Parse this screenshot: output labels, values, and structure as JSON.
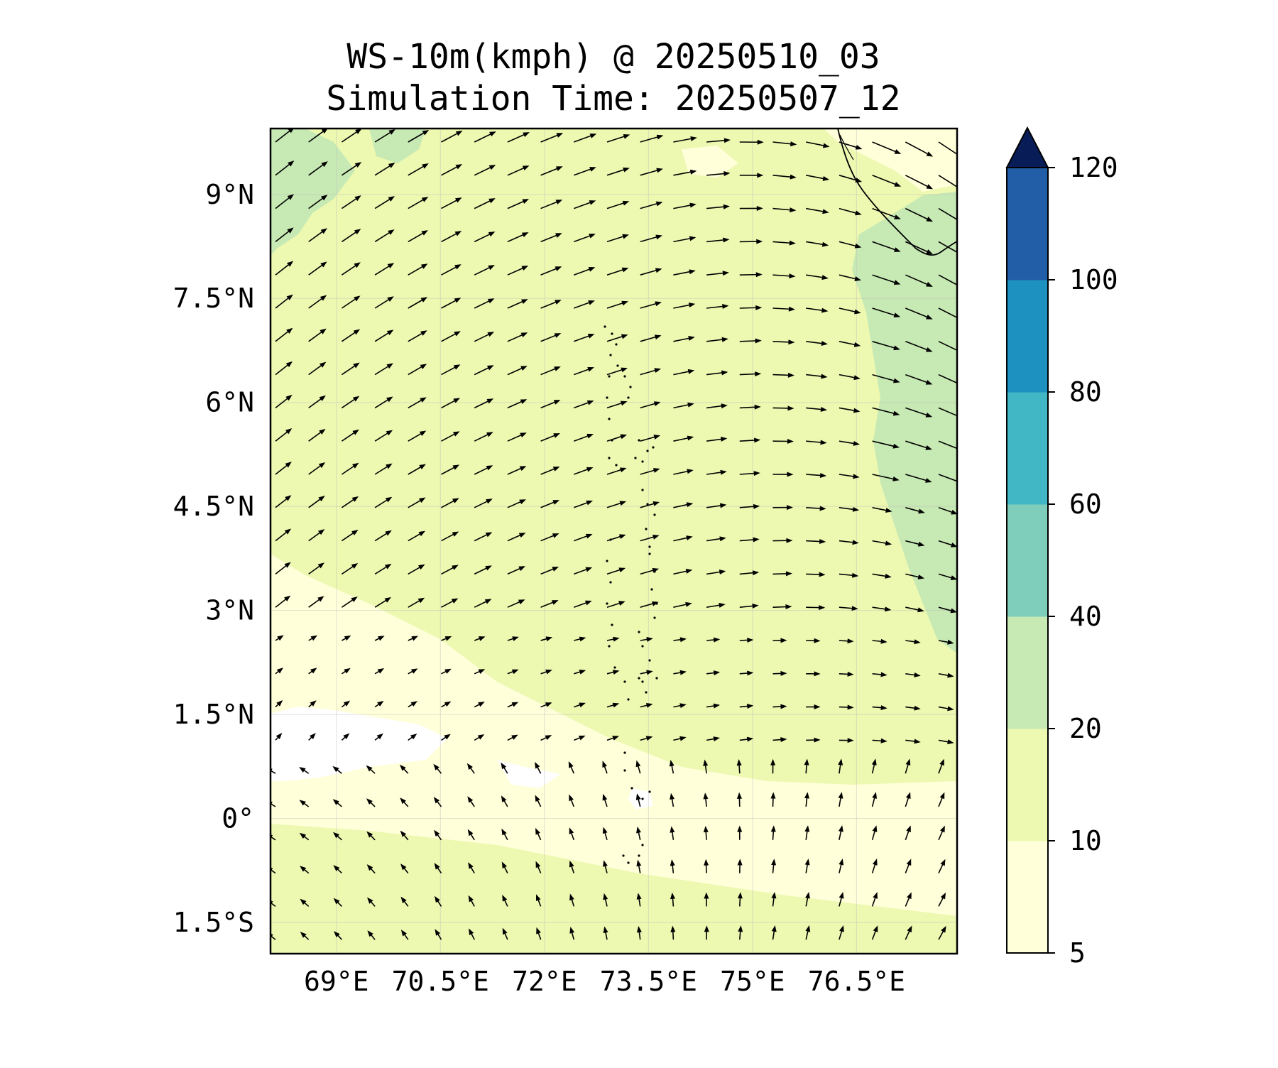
{
  "title": {
    "line1": "WS-10m(kmph) @ 20250510_03",
    "line2": "Simulation Time: 20250507_12"
  },
  "map": {
    "lon_ticks": [
      "69°E",
      "70.5°E",
      "72°E",
      "73.5°E",
      "75°E",
      "76.5°E"
    ],
    "lat_ticks": [
      "9°N",
      "7.5°N",
      "6°N",
      "4.5°N",
      "3°N",
      "1.5°N",
      "0°",
      "1.5°S"
    ],
    "lon_values": [
      69,
      70.5,
      72,
      73.5,
      75,
      76.5
    ],
    "lat_values": [
      9,
      7.5,
      6,
      4.5,
      3,
      1.5,
      0,
      -1.5
    ],
    "extent": {
      "lon_min": 68.05,
      "lon_max": 77.95,
      "lat_min": -1.95,
      "lat_max": 9.95
    }
  },
  "colorbar": {
    "levels": [
      "5",
      "10",
      "20",
      "40",
      "60",
      "80",
      "100",
      "120"
    ],
    "colors": [
      "#ffffd9",
      "#edf8b1",
      "#c7e9b4",
      "#7fcdbb",
      "#41b6c4",
      "#1d91c0",
      "#225ea8",
      "#0c2c84"
    ],
    "extend_color": "#081d58",
    "extend": "max"
  },
  "field_colors": {
    "very_light": "#ffffd9",
    "light": "#edf8b1",
    "medium": "#c7e9b4",
    "calm": "#ffffff"
  }
}
